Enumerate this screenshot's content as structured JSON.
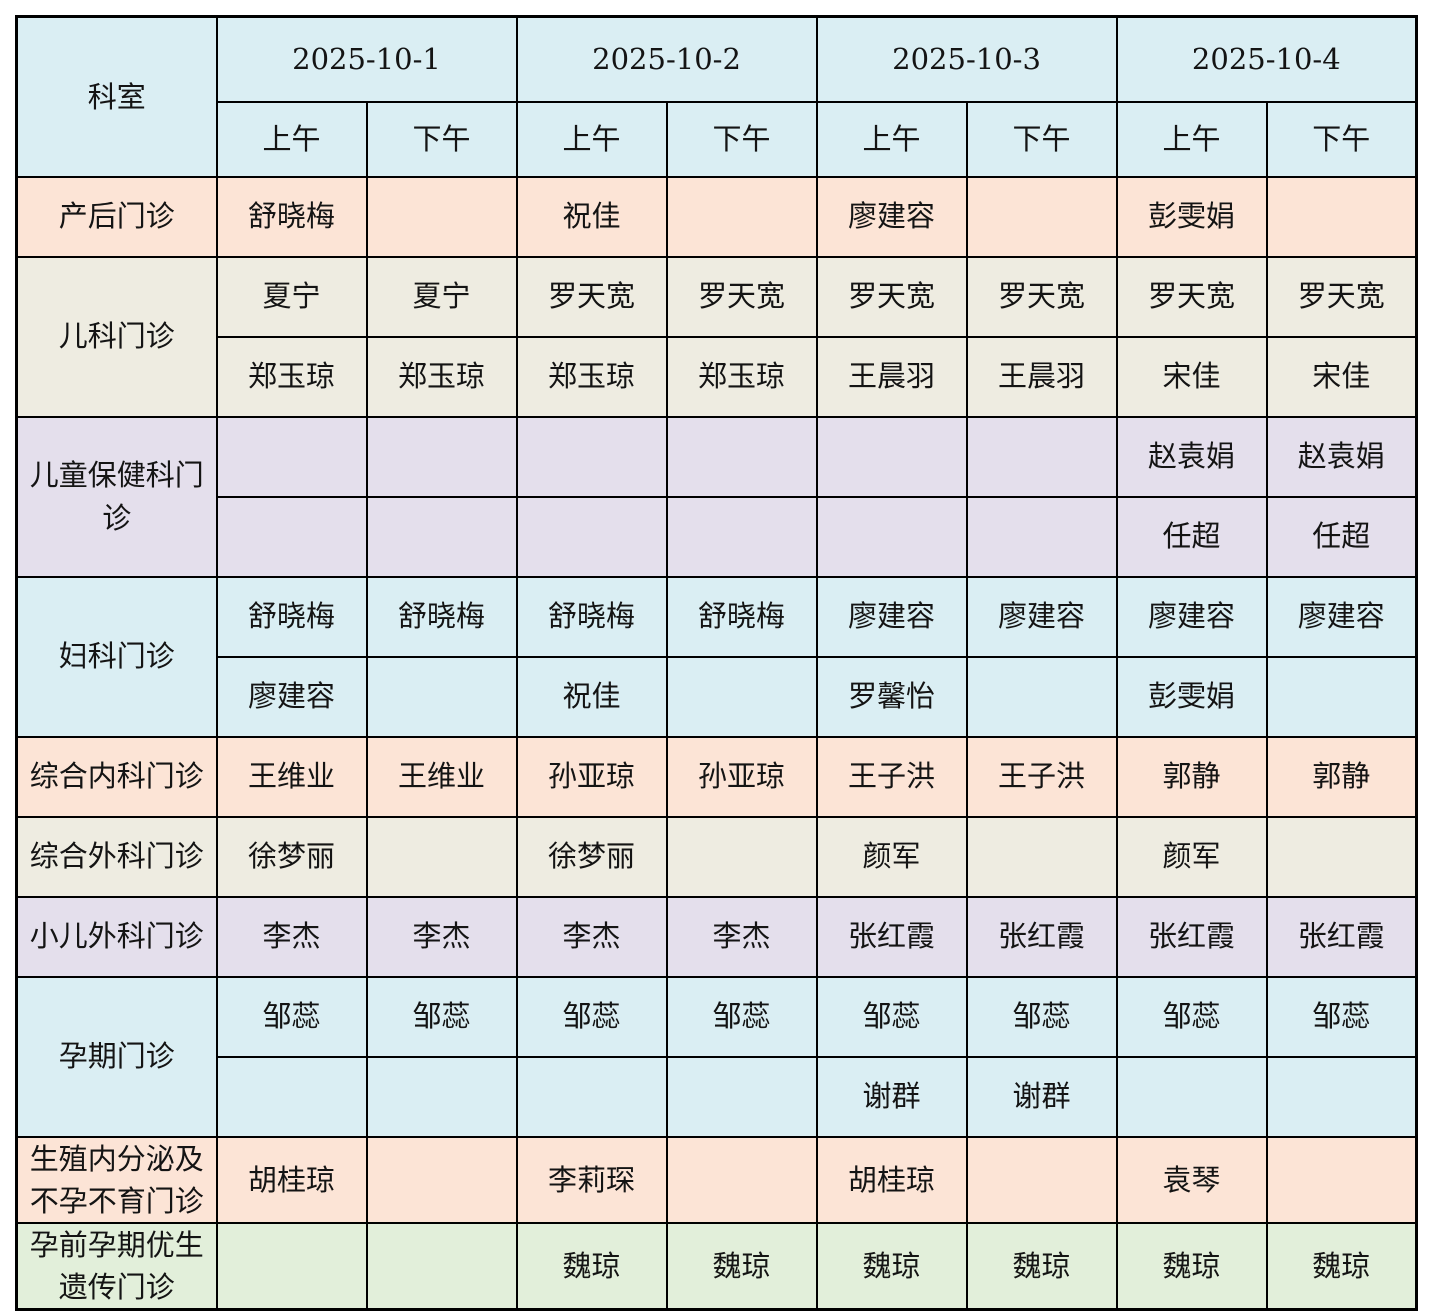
{
  "header": {
    "dept_label": "科室",
    "dates": [
      "2025-10-1",
      "2025-10-2",
      "2025-10-3",
      "2025-10-4"
    ],
    "am_label": "上午",
    "pm_label": "下午"
  },
  "colors": {
    "blue": "#daeef3",
    "peach": "#fce4d6",
    "beige": "#eeece1",
    "purple": "#e4dfec",
    "green": "#e2efda",
    "border": "#000000",
    "text": "#141414",
    "page_bg": "#ffffff"
  },
  "departments": [
    {
      "name": "产后门诊",
      "color": "peach",
      "rows": [
        [
          "舒晓梅",
          "",
          "祝佳",
          "",
          "廖建容",
          "",
          "彭雯娟",
          ""
        ]
      ]
    },
    {
      "name": "儿科门诊",
      "color": "beige",
      "rows": [
        [
          "夏宁",
          "夏宁",
          "罗天宽",
          "罗天宽",
          "罗天宽",
          "罗天宽",
          "罗天宽",
          "罗天宽"
        ],
        [
          "郑玉琼",
          "郑玉琼",
          "郑玉琼",
          "郑玉琼",
          "王晨羽",
          "王晨羽",
          "宋佳",
          "宋佳"
        ]
      ]
    },
    {
      "name": "儿童保健科门诊",
      "color": "purple",
      "rows": [
        [
          "",
          "",
          "",
          "",
          "",
          "",
          "赵袁娟",
          "赵袁娟"
        ],
        [
          "",
          "",
          "",
          "",
          "",
          "",
          "任超",
          "任超"
        ]
      ]
    },
    {
      "name": "妇科门诊",
      "color": "blue",
      "rows": [
        [
          "舒晓梅",
          "舒晓梅",
          "舒晓梅",
          "舒晓梅",
          "廖建容",
          "廖建容",
          "廖建容",
          "廖建容"
        ],
        [
          "廖建容",
          "",
          "祝佳",
          "",
          "罗馨怡",
          "",
          "彭雯娟",
          ""
        ]
      ]
    },
    {
      "name": "综合内科门诊",
      "color": "peach",
      "rows": [
        [
          "王维业",
          "王维业",
          "孙亚琼",
          "孙亚琼",
          "王子洪",
          "王子洪",
          "郭静",
          "郭静"
        ]
      ]
    },
    {
      "name": "综合外科门诊",
      "color": "beige",
      "rows": [
        [
          "徐梦丽",
          "",
          "徐梦丽",
          "",
          "颜军",
          "",
          "颜军",
          ""
        ]
      ]
    },
    {
      "name": "小儿外科门诊",
      "color": "purple",
      "rows": [
        [
          "李杰",
          "李杰",
          "李杰",
          "李杰",
          "张红霞",
          "张红霞",
          "张红霞",
          "张红霞"
        ]
      ]
    },
    {
      "name": "孕期门诊",
      "color": "blue",
      "rows": [
        [
          "邹蕊",
          "邹蕊",
          "邹蕊",
          "邹蕊",
          "邹蕊",
          "邹蕊",
          "邹蕊",
          "邹蕊"
        ],
        [
          "",
          "",
          "",
          "",
          "谢群",
          "谢群",
          "",
          ""
        ]
      ]
    },
    {
      "name": "生殖内分泌及不孕不育门诊",
      "color": "peach",
      "rows": [
        [
          "胡桂琼",
          "",
          "李莉琛",
          "",
          "胡桂琼",
          "",
          "袁琴",
          ""
        ]
      ]
    },
    {
      "name": "孕前孕期优生遗传门诊",
      "color": "green",
      "rows": [
        [
          "",
          "",
          "魏琼",
          "魏琼",
          "魏琼",
          "魏琼",
          "魏琼",
          "魏琼"
        ]
      ]
    }
  ]
}
